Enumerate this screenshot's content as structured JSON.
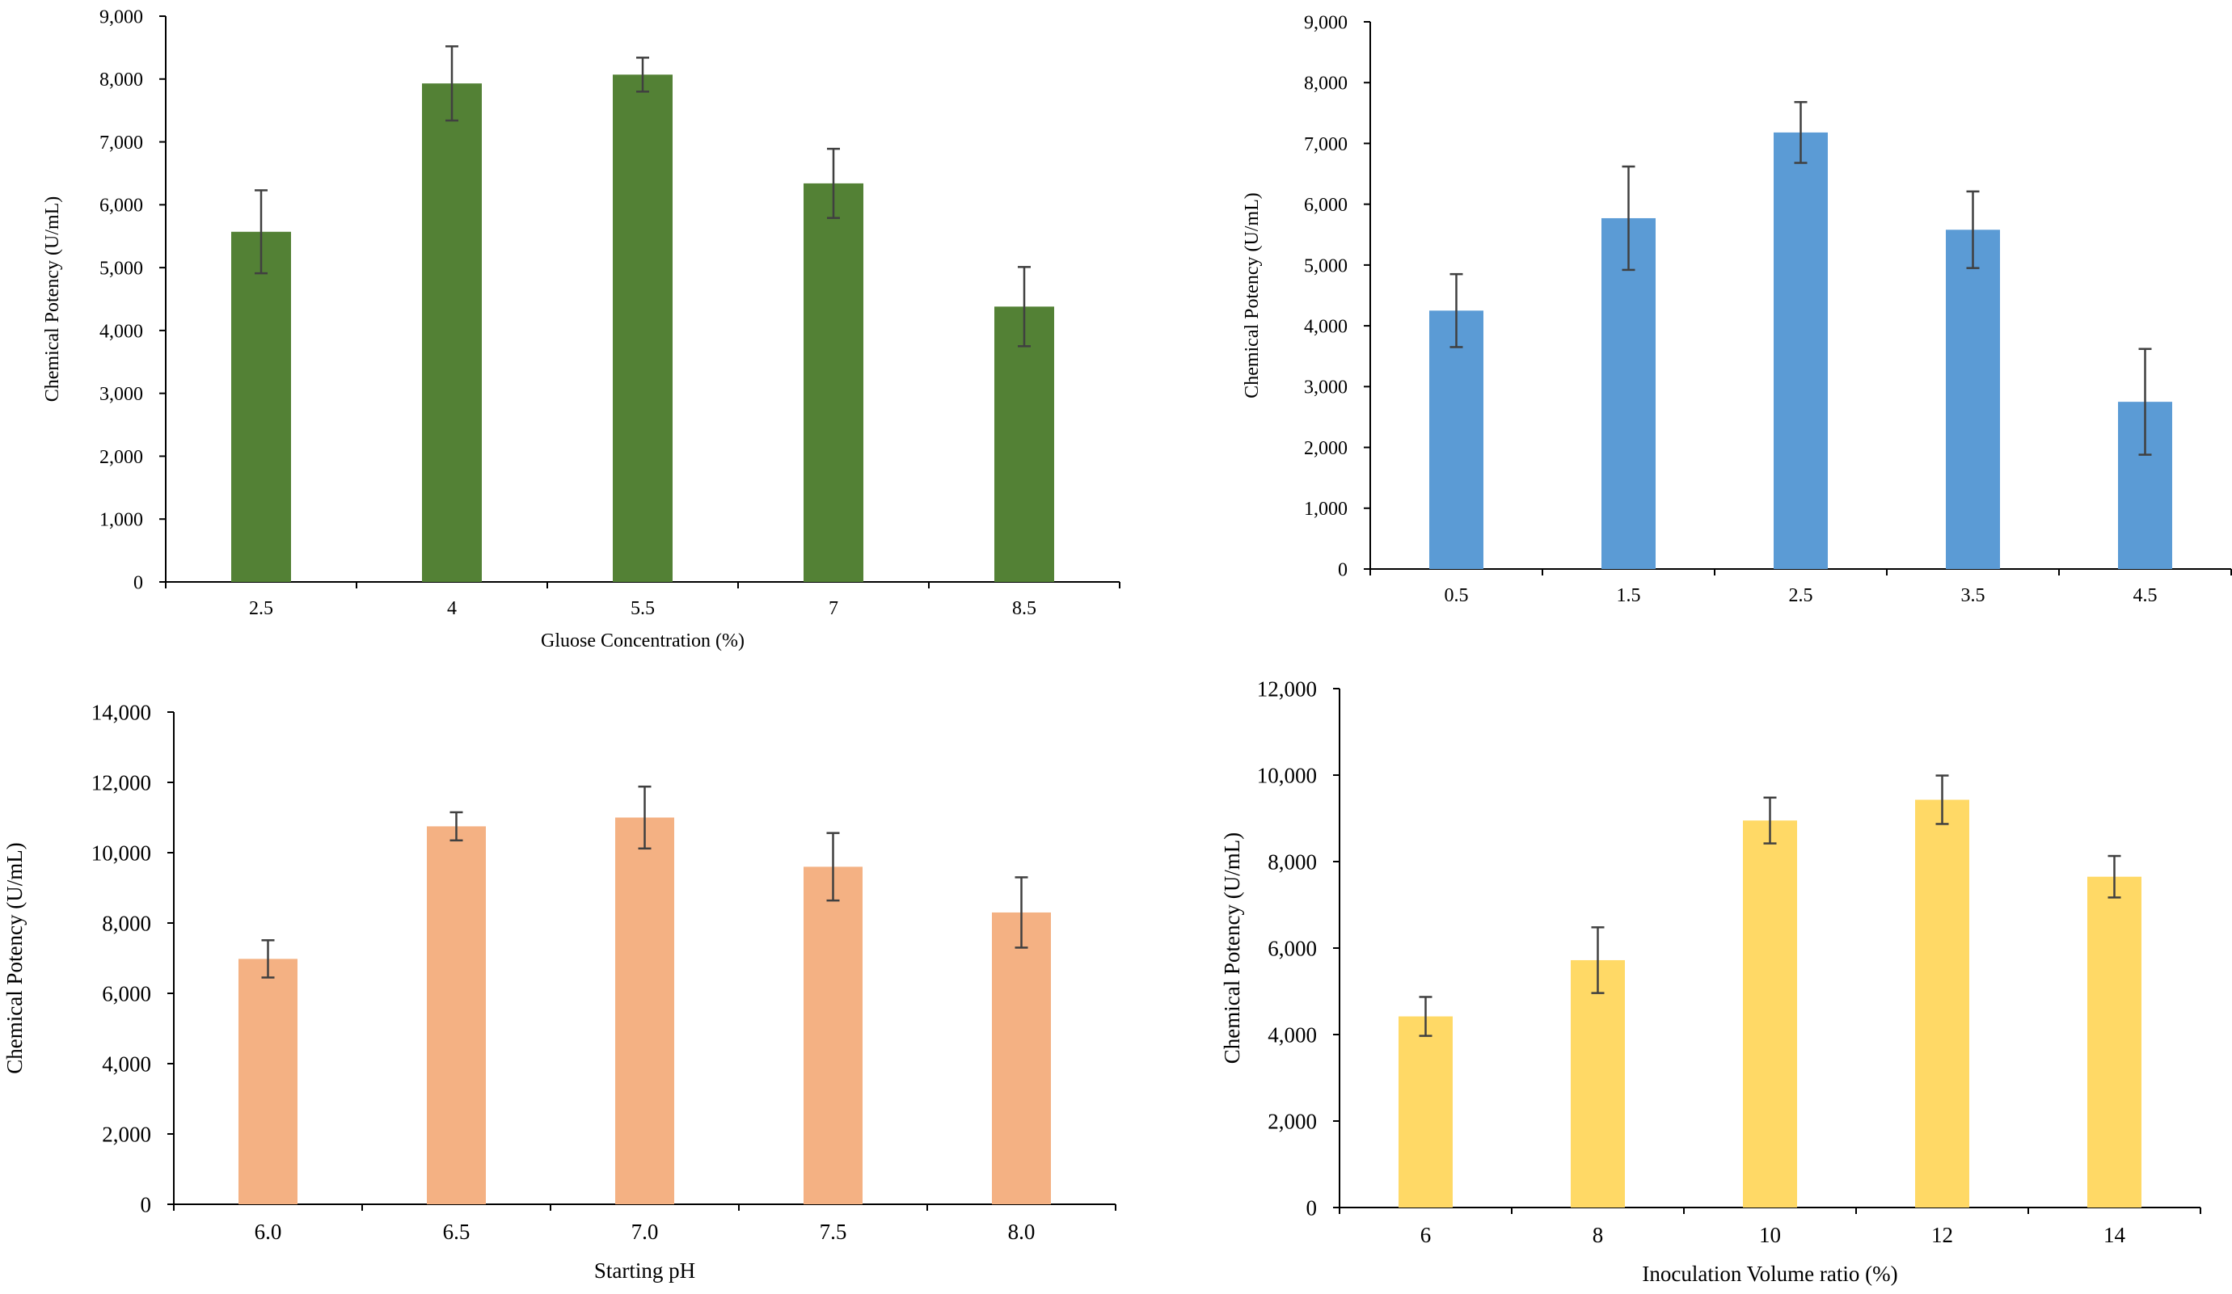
{
  "chart_data": [
    {
      "type": "bar",
      "title": "",
      "xlabel": "Gluose Concentration (%)",
      "ylabel": "Chemical Potency (U/mL)",
      "categories": [
        "2.5",
        "4",
        "5.5",
        "7",
        "8.5"
      ],
      "values": [
        5570,
        7930,
        8070,
        6340,
        4380
      ],
      "errors": [
        660,
        590,
        270,
        550,
        630
      ],
      "ylim": [
        0,
        9000
      ],
      "yticks": [
        "0",
        "1,000",
        "2,000",
        "3,000",
        "4,000",
        "5,000",
        "6,000",
        "7,000",
        "8,000",
        "9,000"
      ],
      "color": "#538135",
      "grid": false,
      "legend": "none"
    },
    {
      "type": "bar",
      "title": "",
      "xlabel": "",
      "ylabel": "Chemical Potency (U/mL)",
      "categories": [
        "0.5",
        "1.5",
        "2.5",
        "3.5",
        "4.5"
      ],
      "values": [
        4250,
        5770,
        7180,
        5580,
        2750
      ],
      "errors": [
        600,
        850,
        500,
        630,
        870
      ],
      "ylim": [
        0,
        9000
      ],
      "yticks": [
        "0",
        "1,000",
        "2,000",
        "3,000",
        "4,000",
        "5,000",
        "6,000",
        "7,000",
        "8,000",
        "9,000"
      ],
      "color": "#5B9BD5",
      "grid": false,
      "legend": "none"
    },
    {
      "type": "bar",
      "title": "",
      "xlabel": "Starting  pH",
      "ylabel": "Chemical Potency (U/mL)",
      "categories": [
        "6.0",
        "6.5",
        "7.0",
        "7.5",
        "8.0"
      ],
      "values": [
        6980,
        10750,
        11000,
        9600,
        8300
      ],
      "errors": [
        530,
        400,
        880,
        960,
        1000
      ],
      "ylim": [
        0,
        14000
      ],
      "yticks": [
        "0",
        "2,000",
        "4,000",
        "6,000",
        "8,000",
        "10,000",
        "12,000",
        "14,000"
      ],
      "color": "#F4B183",
      "grid": false,
      "legend": "none"
    },
    {
      "type": "bar",
      "title": "",
      "xlabel": "Inoculation Volume ratio (%)",
      "ylabel": "Chemical Potency (U/mL)",
      "categories": [
        "6",
        "8",
        "10",
        "12",
        "14"
      ],
      "values": [
        4420,
        5720,
        8950,
        9430,
        7650
      ],
      "errors": [
        450,
        760,
        530,
        560,
        480
      ],
      "ylim": [
        0,
        12000
      ],
      "yticks": [
        "0",
        "2,000",
        "4,000",
        "6,000",
        "8,000",
        "10,000",
        "12,000"
      ],
      "color": "#FFD966",
      "grid": false,
      "legend": "none"
    }
  ]
}
